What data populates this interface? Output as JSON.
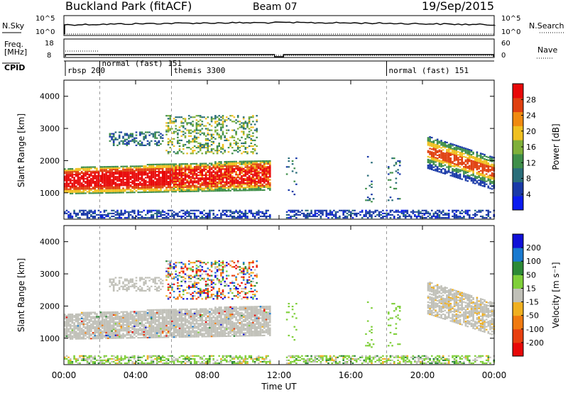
{
  "header": {
    "station": "Buckland Park (fitACF)",
    "beam": "Beam 07",
    "date": "19/Sep/2015"
  },
  "noise_panel": {
    "left_label": "N.Sky",
    "right_label": "N.Search",
    "left_ticks": [
      "10^5",
      "10^0"
    ],
    "right_ticks": [
      "10^5",
      "10^0"
    ]
  },
  "freq_panel": {
    "left_label_line1": "Freq.",
    "left_label_line2": "[MHz]",
    "right_label": "Nave",
    "left_ticks": [
      "18",
      "8"
    ],
    "right_ticks": [
      "60",
      "0"
    ]
  },
  "cpid": {
    "label": "CPID",
    "modes": [
      {
        "name": "rbsp 200",
        "start_hour": 0
      },
      {
        "name": "normal (fast) 151",
        "start_hour": 2
      },
      {
        "name": "themis 3300",
        "start_hour": 6
      },
      {
        "name": "normal (fast) 151",
        "start_hour": 18
      }
    ]
  },
  "x_axis": {
    "label": "Time UT",
    "ticks": [
      "00:00",
      "04:00",
      "08:00",
      "12:00",
      "16:00",
      "20:00",
      "00:00"
    ]
  },
  "chart_data": [
    {
      "type": "heatmap",
      "title": "Power",
      "ylabel": "Slant Range [km]",
      "xlabel": "Time UT",
      "xlim": [
        0,
        24
      ],
      "ylim": [
        180,
        4500
      ],
      "yticks": [
        "1000",
        "2000",
        "3000",
        "4000"
      ],
      "colorbar": {
        "label": "Power [dB]",
        "ticks": [
          "4",
          "8",
          "12",
          "16",
          "20",
          "24",
          "28"
        ],
        "colors": [
          "#0a1cf0",
          "#1a3aa8",
          "#2a6e7a",
          "#3f8f4a",
          "#7fb03a",
          "#f0c020",
          "#f08a10",
          "#e04010",
          "#e80808"
        ]
      },
      "gap_hours": [
        11.8,
        12.2
      ],
      "regions": [
        {
          "name": "main echo band",
          "t": [
            0,
            11.6
          ],
          "range_km": [
            950,
            2000
          ],
          "power_db": 28
        },
        {
          "name": "upper scatter",
          "t": [
            5.6,
            10.8
          ],
          "range_km": [
            2200,
            3400
          ],
          "power_db": 12
        },
        {
          "name": "evening band",
          "t": [
            20.2,
            24
          ],
          "range_km": [
            1300,
            2700
          ],
          "power_db": 24
        },
        {
          "name": "near-range clutter",
          "t": [
            0,
            24
          ],
          "range_km": [
            200,
            450
          ],
          "power_db": 8
        }
      ]
    },
    {
      "type": "heatmap",
      "title": "Velocity",
      "ylabel": "Slant Range [km]",
      "xlabel": "Time UT",
      "xlim": [
        0,
        24
      ],
      "ylim": [
        180,
        4500
      ],
      "yticks": [
        "1000",
        "2000",
        "3000",
        "4000"
      ],
      "colorbar": {
        "label": "Velocity [m s⁻¹]",
        "ticks": [
          "200",
          "100",
          "50",
          "15",
          "-15",
          "-50",
          "-100",
          "-200"
        ],
        "colors": [
          "#1010d8",
          "#1a7ad0",
          "#2c8a36",
          "#7fcf3a",
          "#c0c0b8",
          "#f0b020",
          "#f07a10",
          "#e84010",
          "#e80808"
        ]
      },
      "gap_hours": [
        11.8,
        12.2
      ],
      "regions": [
        {
          "name": "main echo band (ground scatter)",
          "t": [
            0,
            11.6
          ],
          "range_km": [
            950,
            2000
          ],
          "velocity": 0
        },
        {
          "name": "upper scatter",
          "t": [
            5.6,
            10.8
          ],
          "range_km": [
            2200,
            3400
          ],
          "velocity": -80
        },
        {
          "name": "evening band (ground scatter)",
          "t": [
            20.2,
            24
          ],
          "range_km": [
            1300,
            2700
          ],
          "velocity": 0
        },
        {
          "name": "near-range clutter",
          "t": [
            0,
            24
          ],
          "range_km": [
            200,
            450
          ],
          "velocity": 30
        }
      ]
    }
  ]
}
